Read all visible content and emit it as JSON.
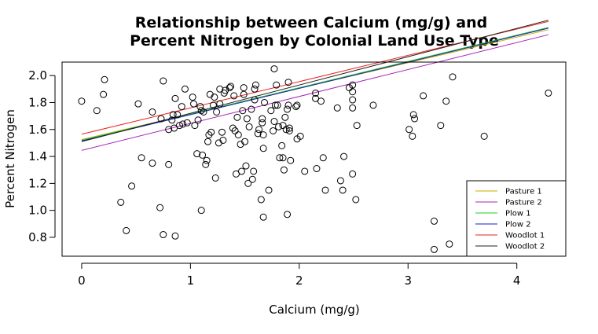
{
  "chart_data": {
    "type": "scatter",
    "title": [
      "Relationship between Calcium (mg/g) and",
      "Percent Nitrogen by Colonial Land Use Type"
    ],
    "xlabel": "Calcium (mg/g)",
    "ylabel": "Percent Nitrogen",
    "xlim": [
      -0.18,
      4.45
    ],
    "ylim": [
      0.66,
      2.1
    ],
    "x_ticks": [
      0,
      1,
      2,
      3,
      4
    ],
    "y_ticks": [
      0.8,
      1.0,
      1.2,
      1.4,
      1.6,
      1.8,
      2.0
    ],
    "x_tick_labels": [
      "0",
      "1",
      "2",
      "3",
      "4"
    ],
    "y_tick_labels": [
      "0.8",
      "1.0",
      "1.2",
      "1.4",
      "1.6",
      "1.8",
      "2.0"
    ],
    "grid": false,
    "legend_position": "bottom-right",
    "points": [
      [
        0.0,
        1.81
      ],
      [
        0.14,
        1.74
      ],
      [
        0.2,
        1.86
      ],
      [
        0.21,
        1.97
      ],
      [
        0.36,
        1.06
      ],
      [
        0.41,
        0.85
      ],
      [
        0.46,
        1.18
      ],
      [
        0.52,
        1.79
      ],
      [
        0.55,
        1.39
      ],
      [
        0.65,
        1.73
      ],
      [
        0.65,
        1.35
      ],
      [
        0.72,
        1.02
      ],
      [
        0.73,
        1.68
      ],
      [
        0.75,
        1.96
      ],
      [
        0.75,
        0.82
      ],
      [
        0.8,
        1.34
      ],
      [
        0.8,
        1.6
      ],
      [
        0.83,
        1.67
      ],
      [
        0.84,
        1.71
      ],
      [
        0.85,
        1.61
      ],
      [
        0.86,
        1.83
      ],
      [
        0.86,
        0.81
      ],
      [
        0.88,
        1.71
      ],
      [
        0.9,
        1.63
      ],
      [
        0.92,
        1.77
      ],
      [
        0.93,
        1.64
      ],
      [
        0.95,
        1.9
      ],
      [
        0.97,
        1.65
      ],
      [
        1.02,
        1.84
      ],
      [
        1.03,
        1.79
      ],
      [
        1.04,
        1.63
      ],
      [
        1.06,
        1.42
      ],
      [
        1.07,
        1.67
      ],
      [
        1.09,
        1.77
      ],
      [
        1.1,
        1.74
      ],
      [
        1.1,
        1.0
      ],
      [
        1.11,
        1.41
      ],
      [
        1.12,
        1.73
      ],
      [
        1.14,
        1.34
      ],
      [
        1.15,
        1.37
      ],
      [
        1.16,
        1.51
      ],
      [
        1.17,
        1.56
      ],
      [
        1.18,
        1.86
      ],
      [
        1.19,
        1.58
      ],
      [
        1.21,
        1.78
      ],
      [
        1.22,
        1.84
      ],
      [
        1.23,
        1.24
      ],
      [
        1.24,
        1.73
      ],
      [
        1.26,
        1.5
      ],
      [
        1.27,
        1.9
      ],
      [
        1.27,
        1.79
      ],
      [
        1.29,
        1.58
      ],
      [
        1.3,
        1.52
      ],
      [
        1.31,
        1.87
      ],
      [
        1.32,
        1.89
      ],
      [
        1.36,
        1.91
      ],
      [
        1.37,
        1.92
      ],
      [
        1.39,
        1.61
      ],
      [
        1.4,
        1.85
      ],
      [
        1.41,
        1.59
      ],
      [
        1.42,
        1.27
      ],
      [
        1.43,
        1.69
      ],
      [
        1.44,
        1.56
      ],
      [
        1.46,
        1.49
      ],
      [
        1.47,
        1.29
      ],
      [
        1.48,
        1.74
      ],
      [
        1.49,
        1.86
      ],
      [
        1.49,
        1.91
      ],
      [
        1.5,
        1.51
      ],
      [
        1.51,
        1.33
      ],
      [
        1.52,
        1.68
      ],
      [
        1.53,
        1.2
      ],
      [
        1.54,
        1.62
      ],
      [
        1.56,
        1.75
      ],
      [
        1.57,
        1.23
      ],
      [
        1.58,
        1.29
      ],
      [
        1.59,
        1.9
      ],
      [
        1.59,
        1.82
      ],
      [
        1.6,
        1.93
      ],
      [
        1.62,
        1.57
      ],
      [
        1.63,
        1.6
      ],
      [
        1.65,
        1.08
      ],
      [
        1.66,
        1.68
      ],
      [
        1.66,
        1.65
      ],
      [
        1.67,
        1.56
      ],
      [
        1.67,
        1.46
      ],
      [
        1.67,
        0.95
      ],
      [
        1.68,
        1.8
      ],
      [
        1.72,
        1.15
      ],
      [
        1.74,
        1.74
      ],
      [
        1.76,
        1.59
      ],
      [
        1.77,
        2.05
      ],
      [
        1.77,
        1.66
      ],
      [
        1.78,
        1.78
      ],
      [
        1.79,
        1.93
      ],
      [
        1.8,
        1.78
      ],
      [
        1.81,
        1.62
      ],
      [
        1.82,
        1.39
      ],
      [
        1.84,
        1.48
      ],
      [
        1.85,
        1.63
      ],
      [
        1.85,
        1.39
      ],
      [
        1.86,
        1.3
      ],
      [
        1.87,
        1.69
      ],
      [
        1.88,
        1.6
      ],
      [
        1.89,
        1.75
      ],
      [
        1.89,
        0.97
      ],
      [
        1.9,
        1.95
      ],
      [
        1.9,
        1.78
      ],
      [
        1.91,
        1.61
      ],
      [
        1.91,
        1.59
      ],
      [
        1.92,
        1.37
      ],
      [
        1.97,
        1.77
      ],
      [
        1.98,
        1.78
      ],
      [
        1.98,
        1.53
      ],
      [
        2.01,
        1.55
      ],
      [
        2.05,
        1.29
      ],
      [
        2.15,
        1.87
      ],
      [
        2.15,
        1.83
      ],
      [
        2.16,
        1.31
      ],
      [
        2.2,
        1.81
      ],
      [
        2.22,
        1.39
      ],
      [
        2.24,
        1.15
      ],
      [
        2.35,
        1.76
      ],
      [
        2.38,
        1.22
      ],
      [
        2.4,
        1.15
      ],
      [
        2.41,
        1.4
      ],
      [
        2.46,
        1.91
      ],
      [
        2.49,
        1.93
      ],
      [
        2.49,
        1.82
      ],
      [
        2.49,
        1.88
      ],
      [
        2.49,
        1.76
      ],
      [
        2.49,
        1.27
      ],
      [
        2.52,
        1.08
      ],
      [
        2.53,
        1.63
      ],
      [
        2.68,
        1.78
      ],
      [
        3.01,
        1.6
      ],
      [
        3.04,
        1.55
      ],
      [
        3.05,
        1.71
      ],
      [
        3.06,
        1.68
      ],
      [
        3.14,
        1.85
      ],
      [
        3.24,
        0.92
      ],
      [
        3.24,
        0.71
      ],
      [
        3.3,
        1.63
      ],
      [
        3.35,
        1.81
      ],
      [
        3.38,
        0.75
      ],
      [
        3.41,
        1.99
      ],
      [
        3.7,
        1.55
      ],
      [
        4.29,
        1.87
      ]
    ],
    "lines": [
      {
        "name": "Pasture 1",
        "color": "#ccaa00",
        "y_at_x0": 1.525,
        "y_at_x1": 1.715
      },
      {
        "name": "Pasture 2",
        "color": "#aa22bb",
        "y_at_x0": 1.445,
        "y_at_x1": 1.645
      },
      {
        "name": "Plow 1",
        "color": "#22cc22",
        "y_at_x0": 1.52,
        "y_at_x1": 1.715
      },
      {
        "name": "Plow 2",
        "color": "#1a1acc",
        "y_at_x0": 1.515,
        "y_at_x1": 1.71
      },
      {
        "name": "Woodlot 1",
        "color": "#ee2222",
        "y_at_x0": 1.565,
        "y_at_x1": 1.76
      },
      {
        "name": "Woodlot 2",
        "color": "#222222",
        "y_at_x0": 1.51,
        "y_at_x1": 1.72
      }
    ],
    "line_x_range": [
      0,
      4.29
    ]
  }
}
